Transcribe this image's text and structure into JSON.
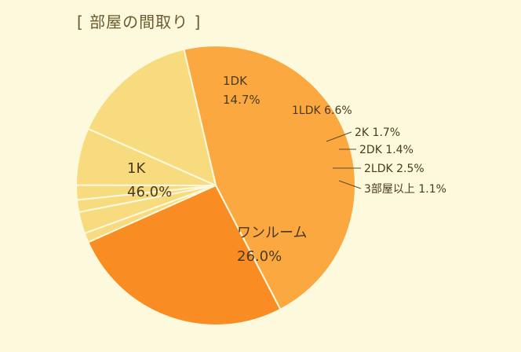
{
  "chart_data": {
    "type": "pie",
    "title": "[ 部屋の間取り ]",
    "slices": [
      {
        "label": "1K",
        "value": 46.0,
        "pct_text": "46.0%",
        "color": "#fba841",
        "label_mode": "inside"
      },
      {
        "label": "ワンルーム",
        "value": 26.0,
        "pct_text": "26.0%",
        "color": "#f98d23",
        "label_mode": "inside"
      },
      {
        "label": "3部屋以上",
        "value": 1.1,
        "pct_text": "1.1%",
        "color": "#f8db7f",
        "label_mode": "outside"
      },
      {
        "label": "2LDK",
        "value": 2.5,
        "pct_text": "2.5%",
        "color": "#f8db7f",
        "label_mode": "outside"
      },
      {
        "label": "2DK",
        "value": 1.4,
        "pct_text": "1.4%",
        "color": "#f8db7f",
        "label_mode": "outside"
      },
      {
        "label": "2K",
        "value": 1.7,
        "pct_text": "1.7%",
        "color": "#f8db7f",
        "label_mode": "outside"
      },
      {
        "label": "1LDK",
        "value": 6.6,
        "pct_text": "6.6%",
        "color": "#f8db7f",
        "label_mode": "near"
      },
      {
        "label": "1DK",
        "value": 14.7,
        "pct_text": "14.7%",
        "color": "#f8db7f",
        "label_mode": "inside"
      }
    ]
  }
}
